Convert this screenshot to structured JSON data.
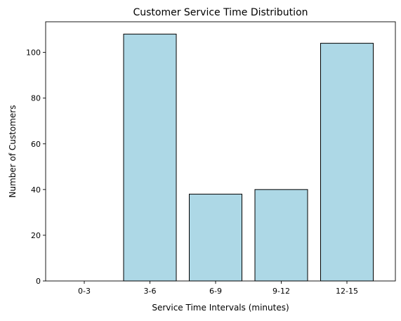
{
  "chart_data": {
    "type": "bar",
    "title": "Customer Service Time Distribution",
    "xlabel": "Service Time Intervals (minutes)",
    "ylabel": "Number of Customers",
    "categories": [
      "0-3",
      "3-6",
      "6-9",
      "9-12",
      "12-15"
    ],
    "values": [
      0,
      108,
      38,
      40,
      104
    ],
    "ylim": [
      0,
      113.4
    ],
    "yticks": [
      0,
      20,
      40,
      60,
      80,
      100
    ],
    "grid": false,
    "legend": "none",
    "bar_color": "#add8e6",
    "edge_color": "#000000"
  }
}
